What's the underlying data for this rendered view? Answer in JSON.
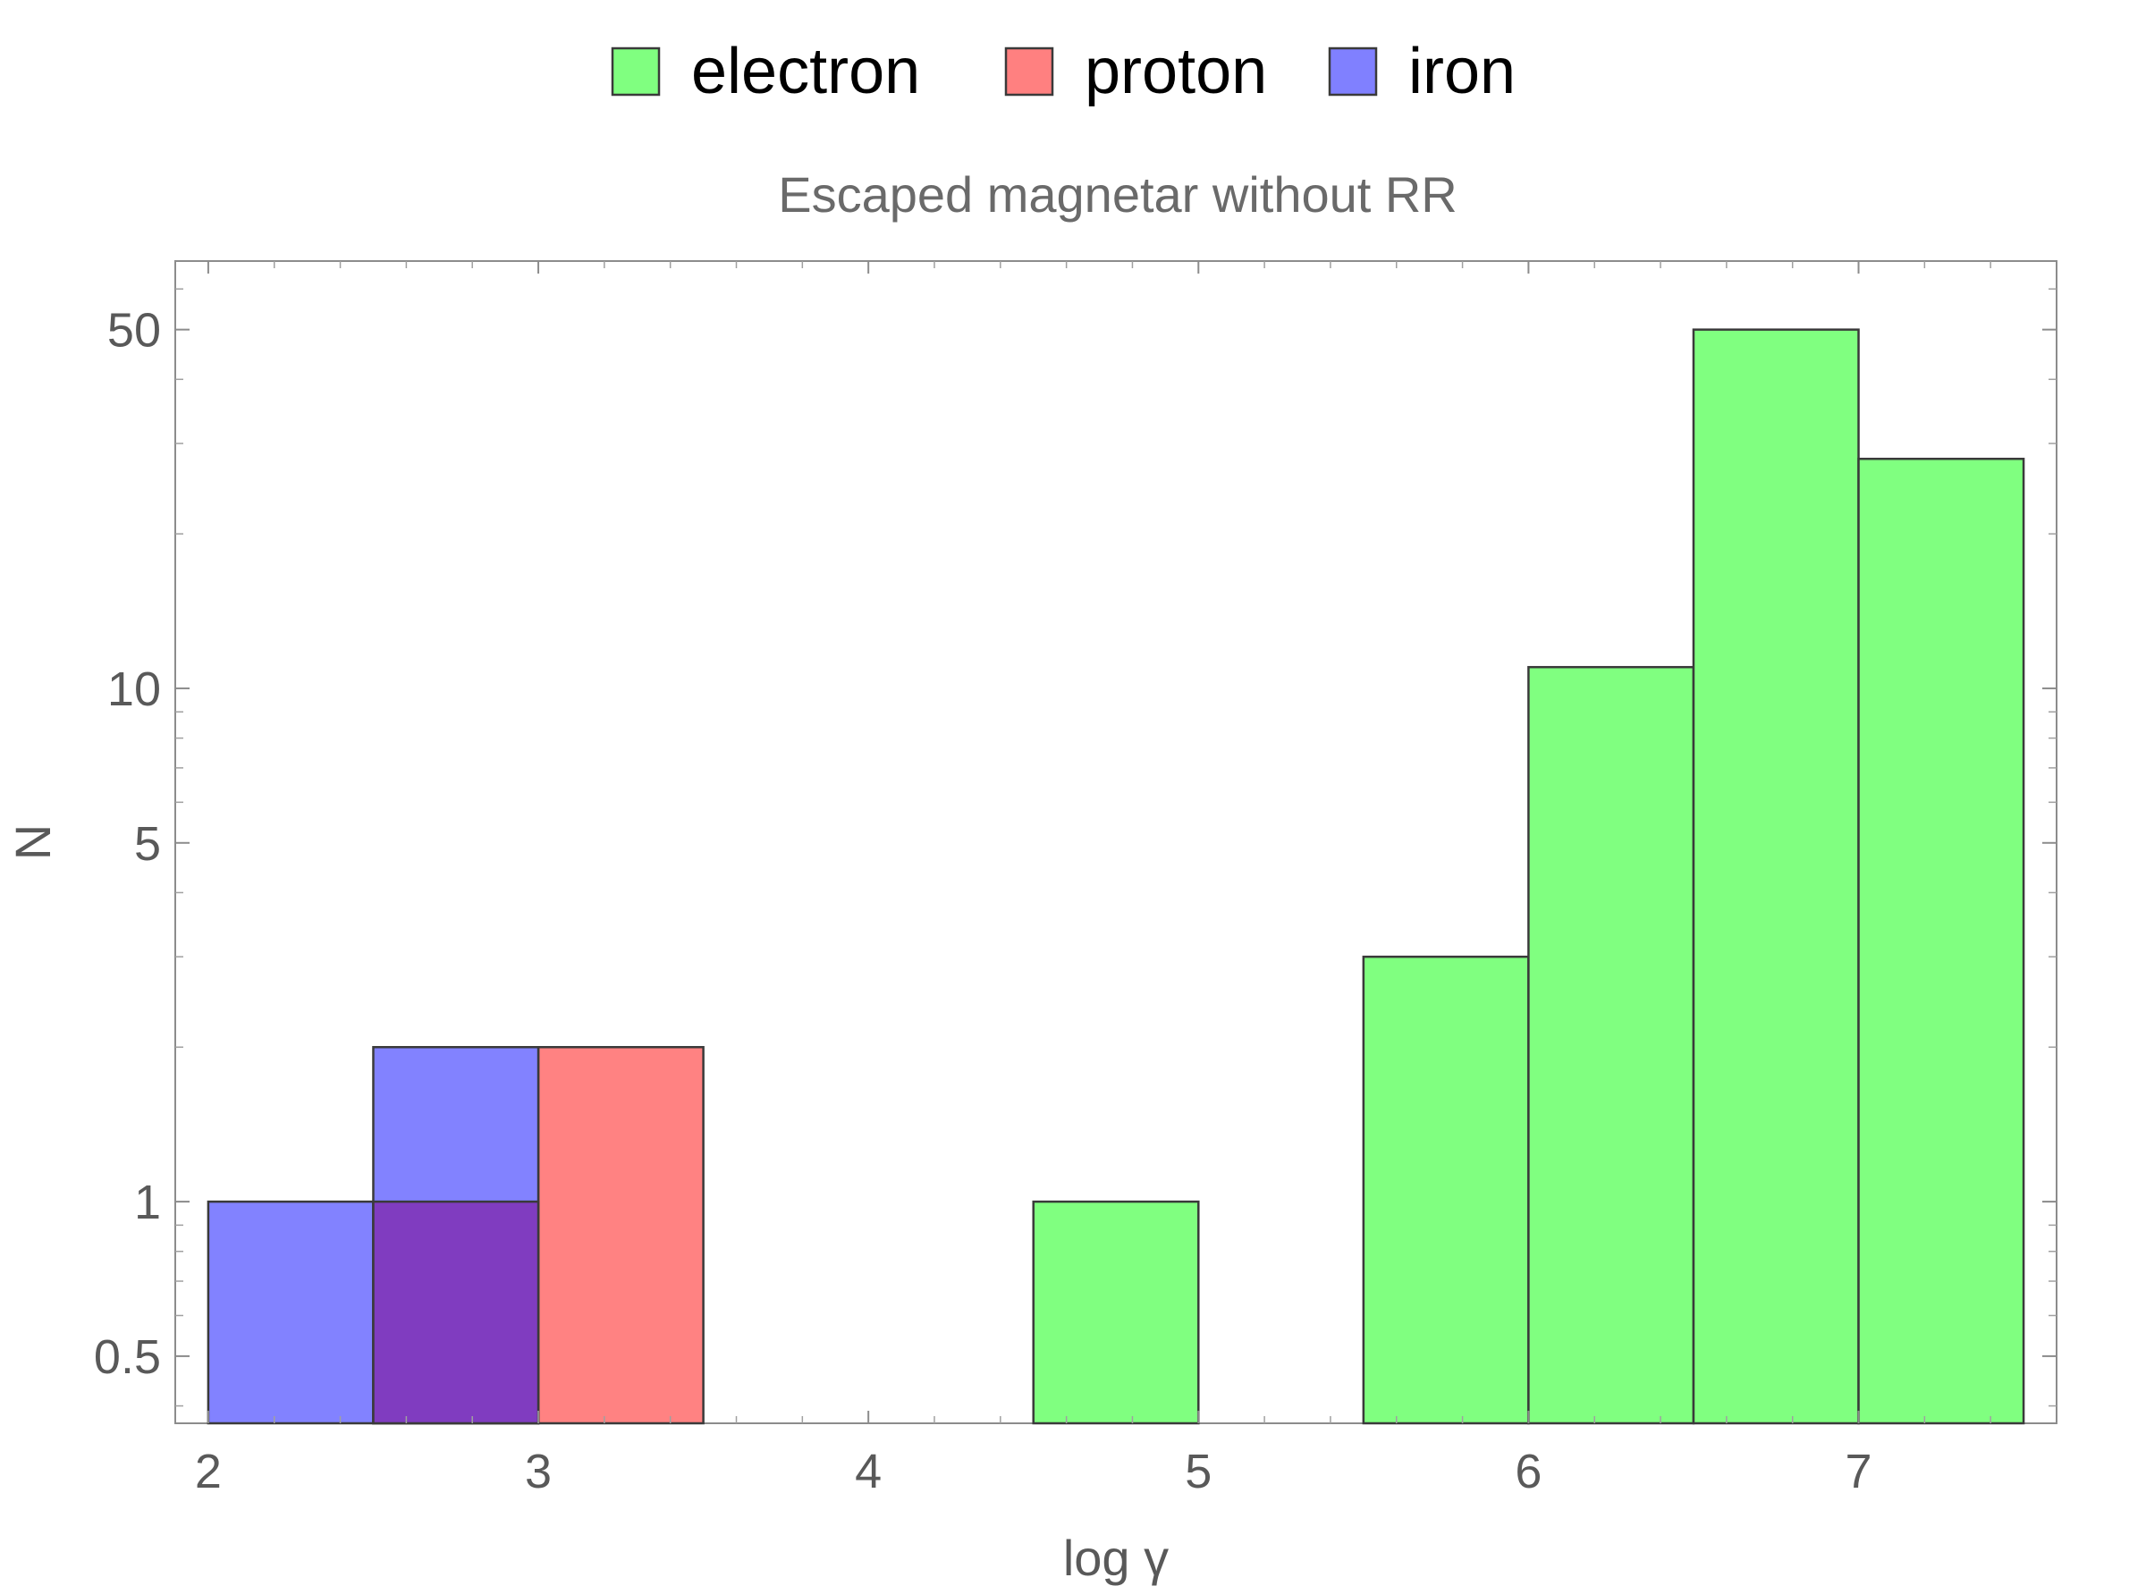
{
  "chart_data": {
    "type": "bar",
    "subtype": "histogram",
    "title": "Escaped magnetar without RR",
    "xlabel": "log γ",
    "ylabel": "N",
    "xlim": [
      1.9,
      7.6
    ],
    "ylim": [
      0.37,
      68
    ],
    "yscale": "log",
    "xticks": [
      2,
      3,
      4,
      5,
      6,
      7
    ],
    "xtick_labels": [
      "2",
      "3",
      "4",
      "5",
      "6",
      "7"
    ],
    "yticks": [
      0.5,
      1,
      5,
      10,
      50
    ],
    "ytick_labels": [
      "0.5",
      "1",
      "5",
      "10",
      "50"
    ],
    "grid": false,
    "legend": {
      "placement": "top-center"
    },
    "series": [
      {
        "name": "electron",
        "color": "#80ff80",
        "bins": [
          {
            "x0": 4.5,
            "x1": 5.0,
            "count": 1
          },
          {
            "x0": 5.5,
            "x1": 6.0,
            "count": 3
          },
          {
            "x0": 6.0,
            "x1": 6.5,
            "count": 11
          },
          {
            "x0": 6.5,
            "x1": 7.0,
            "count": 50
          },
          {
            "x0": 7.0,
            "x1": 7.5,
            "count": 28
          }
        ]
      },
      {
        "name": "proton",
        "color": "#ff8080",
        "bins": [
          {
            "x0": 2.5,
            "x1": 3.0,
            "count": 1
          },
          {
            "x0": 3.0,
            "x1": 3.5,
            "count": 2
          }
        ]
      },
      {
        "name": "iron",
        "color": "#8080ff",
        "bins": [
          {
            "x0": 2.0,
            "x1": 2.5,
            "count": 1
          },
          {
            "x0": 2.5,
            "x1": 3.0,
            "count": 2
          }
        ]
      }
    ]
  }
}
